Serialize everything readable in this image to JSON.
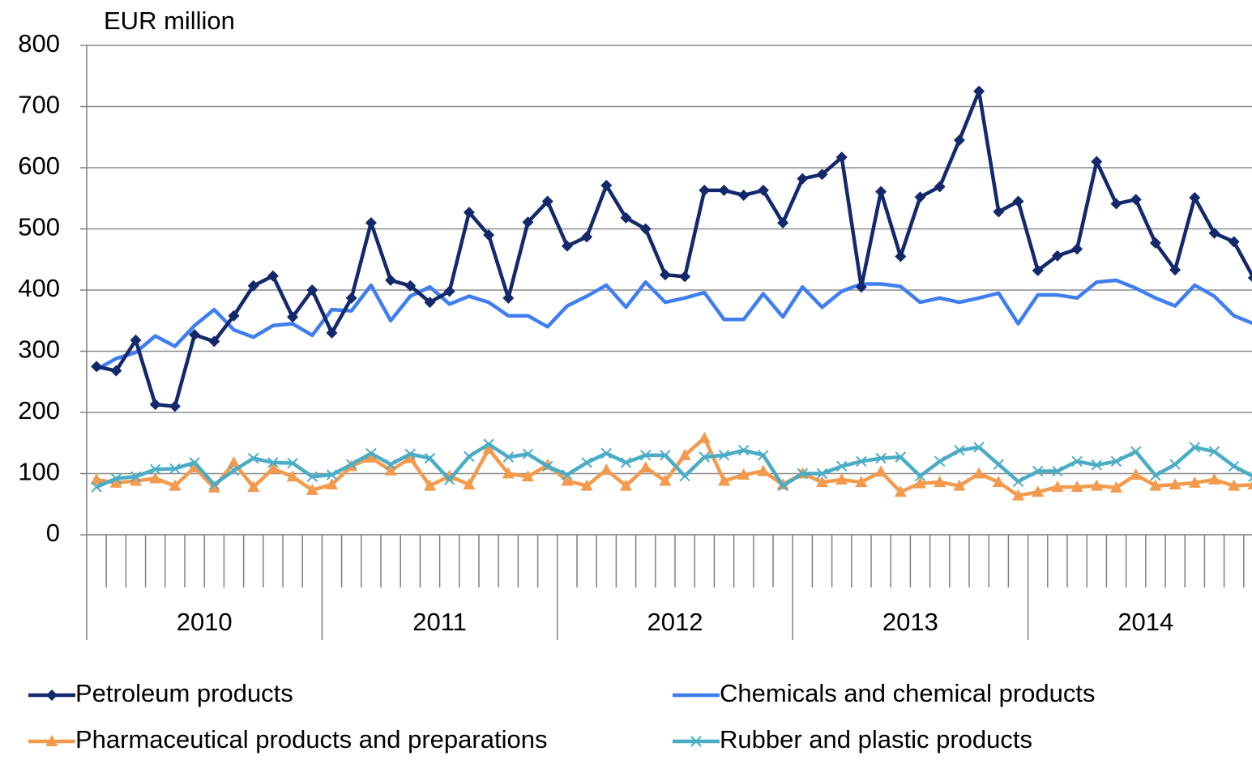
{
  "chart_data": {
    "type": "line",
    "title": "EUR million",
    "categories": [
      null,
      null,
      null,
      null,
      null,
      null,
      null,
      null,
      null,
      null,
      null,
      null,
      null,
      null,
      null,
      null,
      null,
      null,
      null,
      null,
      null,
      null,
      null,
      null,
      null,
      null,
      null,
      null,
      null,
      null,
      null,
      null,
      null,
      null,
      null,
      null,
      null,
      null,
      null,
      null,
      null,
      null,
      null,
      null,
      null,
      null,
      null,
      null,
      null,
      null,
      null,
      null,
      null,
      null,
      null,
      null,
      null,
      null,
      null,
      null
    ],
    "year_groups": [
      {
        "label": "2010",
        "count": 12
      },
      {
        "label": "2011",
        "count": 12
      },
      {
        "label": "2012",
        "count": 12
      },
      {
        "label": "2013",
        "count": 12
      },
      {
        "label": "2014",
        "count": 12
      }
    ],
    "ylim": [
      0,
      800
    ],
    "yticks": [
      0,
      100,
      200,
      300,
      400,
      500,
      600,
      700,
      800
    ],
    "grid": true,
    "legend": "bottom",
    "series": [
      {
        "name": "Petroleum products",
        "color": "#14296b",
        "marker": "diamond",
        "values": [
          275,
          268,
          318,
          213,
          210,
          327,
          316,
          358,
          407,
          423,
          356,
          400,
          330,
          387,
          510,
          416,
          407,
          380,
          398,
          527,
          490,
          387,
          511,
          545,
          472,
          487,
          571,
          518,
          500,
          425,
          422,
          563,
          563,
          555,
          563,
          510,
          582,
          589,
          617,
          405,
          561,
          455,
          552,
          569,
          645,
          725,
          528,
          545,
          432,
          456,
          467,
          610,
          541,
          548,
          477,
          433,
          551,
          493,
          479,
          420
        ]
      },
      {
        "name": "Chemicals and chemical products",
        "color": "#3f7ef0",
        "marker": "none",
        "values": [
          270,
          288,
          298,
          325,
          308,
          342,
          368,
          335,
          323,
          342,
          345,
          326,
          368,
          366,
          408,
          350,
          390,
          405,
          377,
          390,
          380,
          358,
          358,
          340,
          374,
          390,
          408,
          372,
          413,
          380,
          387,
          396,
          352,
          352,
          394,
          356,
          405,
          372,
          398,
          410,
          410,
          406,
          380,
          387,
          380,
          387,
          395,
          345,
          392,
          392,
          387,
          413,
          416,
          403,
          387,
          374,
          408,
          390,
          358,
          345
        ]
      },
      {
        "name": "Pharmaceutical products and preparations",
        "color": "#f39a4c",
        "marker": "triangle",
        "values": [
          90,
          85,
          88,
          92,
          80,
          110,
          77,
          118,
          78,
          108,
          95,
          73,
          82,
          112,
          126,
          105,
          125,
          80,
          96,
          82,
          140,
          100,
          95,
          114,
          88,
          80,
          106,
          80,
          110,
          88,
          130,
          158,
          88,
          98,
          104,
          82,
          100,
          86,
          90,
          86,
          103,
          70,
          84,
          86,
          80,
          100,
          86,
          64,
          70,
          78,
          78,
          80,
          77,
          98,
          80,
          82,
          85,
          90,
          80,
          82
        ]
      },
      {
        "name": "Rubber and plastic products",
        "color": "#4bacc6",
        "marker": "x",
        "values": [
          78,
          92,
          95,
          107,
          108,
          118,
          82,
          105,
          125,
          118,
          117,
          95,
          98,
          115,
          133,
          115,
          132,
          125,
          90,
          128,
          148,
          127,
          132,
          112,
          98,
          118,
          133,
          118,
          130,
          130,
          96,
          127,
          130,
          138,
          130,
          80,
          100,
          100,
          112,
          120,
          125,
          127,
          96,
          120,
          138,
          143,
          115,
          87,
          104,
          104,
          120,
          114,
          120,
          136,
          97,
          115,
          143,
          136,
          112,
          95
        ]
      }
    ]
  }
}
